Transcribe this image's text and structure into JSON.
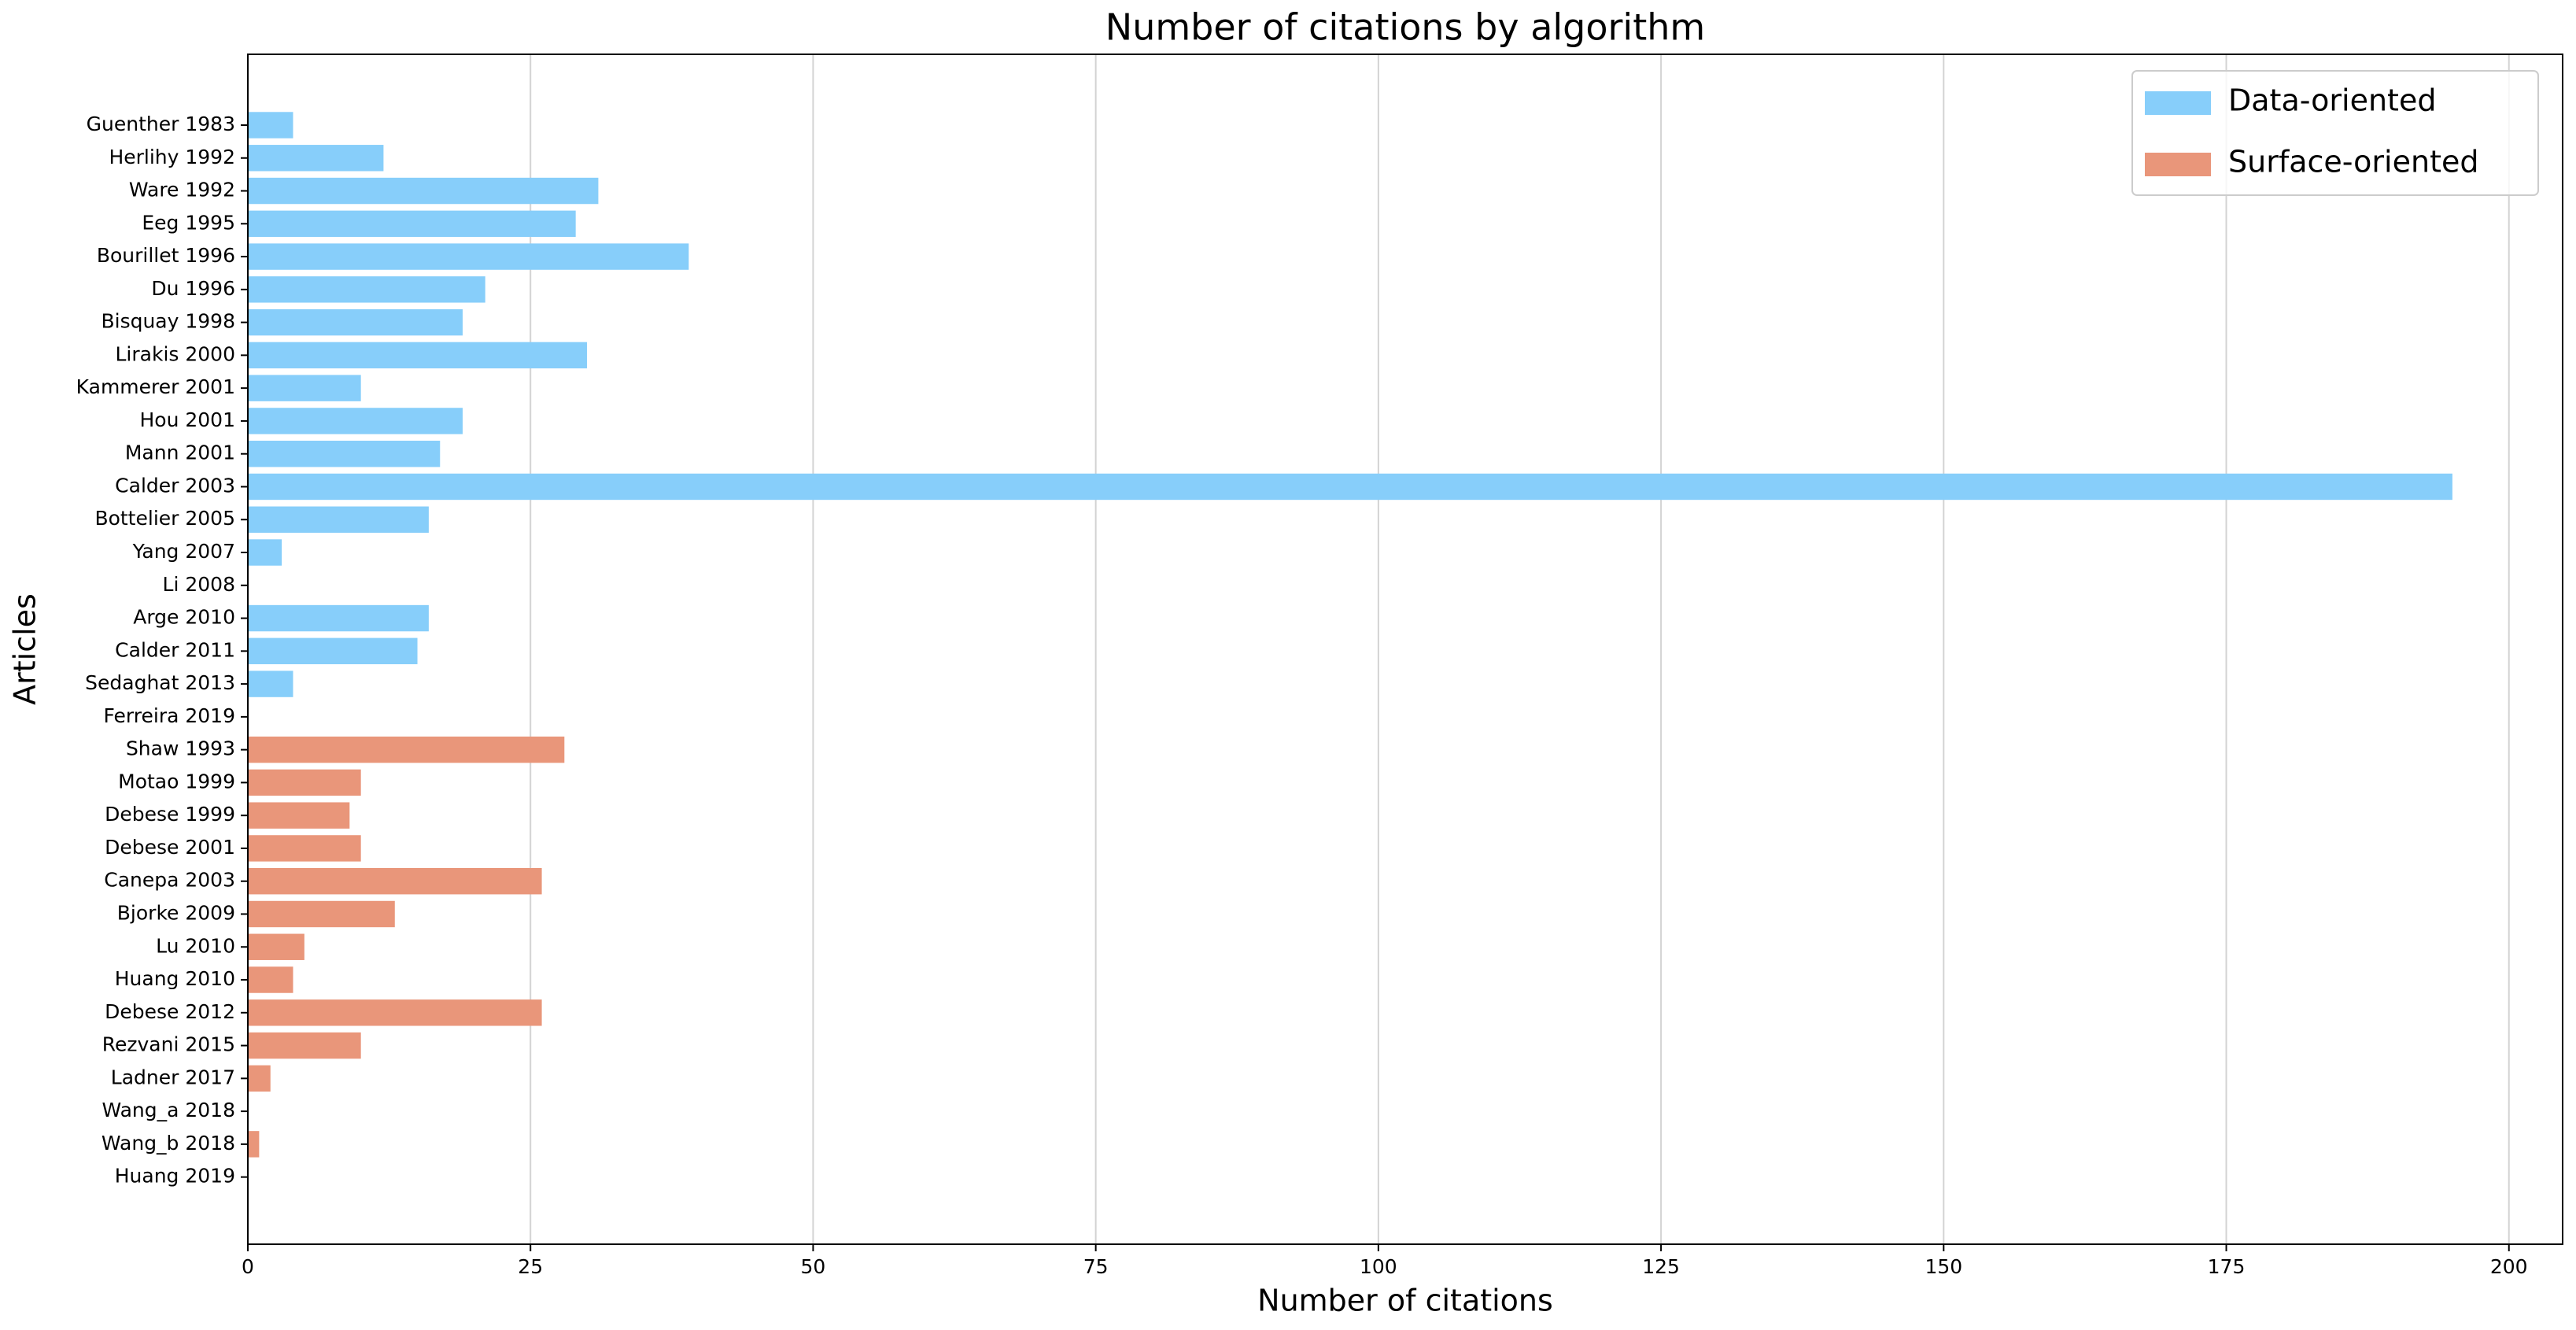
{
  "chart_data": {
    "type": "barh",
    "title": "Number of citations by algorithm",
    "xlabel": "Number of citations",
    "ylabel": "Articles",
    "categories": [
      "Guenther 1983",
      "Herlihy 1992",
      "Ware 1992",
      "Eeg 1995",
      "Bourillet 1996",
      "Du 1996",
      "Bisquay 1998",
      "Lirakis 2000",
      "Kammerer 2001",
      "Hou 2001",
      "Mann 2001",
      "Calder 2003",
      "Bottelier 2005",
      "Yang 2007",
      "Li 2008",
      "Arge 2010",
      "Calder 2011",
      "Sedaghat 2013",
      "Ferreira 2019",
      "Shaw 1993",
      "Motao 1999",
      "Debese 1999",
      "Debese 2001",
      "Canepa 2003",
      "Bjorke 2009",
      "Lu 2010",
      "Huang 2010",
      "Debese 2012",
      "Rezvani 2015",
      "Ladner 2017",
      "Wang_a 2018",
      "Wang_b 2018",
      "Huang 2019"
    ],
    "series": [
      {
        "name": "Data-oriented",
        "color": "#87cefa",
        "values": [
          4,
          12,
          31,
          29,
          39,
          21,
          19,
          30,
          10,
          19,
          17,
          195,
          16,
          3,
          0,
          16,
          15,
          4,
          0,
          null,
          null,
          null,
          null,
          null,
          null,
          null,
          null,
          null,
          null,
          null,
          null,
          null,
          null
        ]
      },
      {
        "name": "Surface-oriented",
        "color": "#e9967a",
        "values": [
          null,
          null,
          null,
          null,
          null,
          null,
          null,
          null,
          null,
          null,
          null,
          null,
          null,
          null,
          null,
          null,
          null,
          null,
          null,
          28,
          10,
          9,
          10,
          26,
          13,
          5,
          4,
          26,
          10,
          2,
          0,
          1,
          0
        ]
      }
    ],
    "xlim": [
      0,
      204.75
    ],
    "xticks": [
      0,
      25,
      50,
      75,
      100,
      125,
      150,
      175,
      200
    ],
    "grid": true,
    "legend": "upper right"
  }
}
